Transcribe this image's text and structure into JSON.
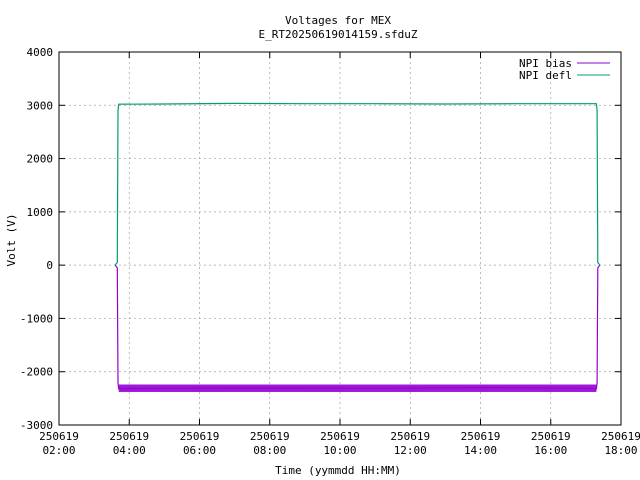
{
  "chart_data": {
    "type": "line",
    "title": "Voltages for MEX",
    "subtitle": "E_RT20250619014159.sfduZ",
    "xlabel": "Time (yymmdd HH:MM)",
    "ylabel": "Volt (V)",
    "ylim": [
      -3000,
      4000
    ],
    "yticks": [
      4000,
      3000,
      2000,
      1000,
      0,
      -1000,
      -2000,
      -3000
    ],
    "xlim_hours": [
      2,
      18
    ],
    "xticks": [
      {
        "hour": 2,
        "date": "250619",
        "time": "02:00"
      },
      {
        "hour": 4,
        "date": "250619",
        "time": "04:00"
      },
      {
        "hour": 6,
        "date": "250619",
        "time": "06:00"
      },
      {
        "hour": 8,
        "date": "250619",
        "time": "08:00"
      },
      {
        "hour": 10,
        "date": "250619",
        "time": "10:00"
      },
      {
        "hour": 12,
        "date": "250619",
        "time": "12:00"
      },
      {
        "hour": 14,
        "date": "250619",
        "time": "14:00"
      },
      {
        "hour": 16,
        "date": "250619",
        "time": "16:00"
      },
      {
        "hour": 18,
        "date": "250619",
        "time": "18:00"
      }
    ],
    "grid": true,
    "legend_position": "top-right",
    "series": [
      {
        "name": "NPI bias",
        "color": "#9400d3",
        "x_hours": [
          3.6,
          3.66,
          3.68,
          3.7,
          5.0,
          8.0,
          11.0,
          14.0,
          17.0,
          17.3,
          17.32,
          17.34,
          17.4
        ],
        "values": [
          0,
          -50,
          -2200,
          -2320,
          -2310,
          -2305,
          -2310,
          -2300,
          -2310,
          -2320,
          -2200,
          -50,
          0
        ],
        "noise_band": [
          -2380,
          -2240
        ]
      },
      {
        "name": "NPI defl",
        "color": "#009e73",
        "x_hours": [
          3.6,
          3.66,
          3.68,
          3.7,
          5.0,
          7.0,
          9.0,
          11.0,
          13.0,
          15.0,
          17.0,
          17.3,
          17.32,
          17.34,
          17.4
        ],
        "values": [
          0,
          50,
          2900,
          3020,
          3025,
          3035,
          3030,
          3030,
          3025,
          3030,
          3030,
          3030,
          2900,
          50,
          0
        ]
      }
    ]
  }
}
